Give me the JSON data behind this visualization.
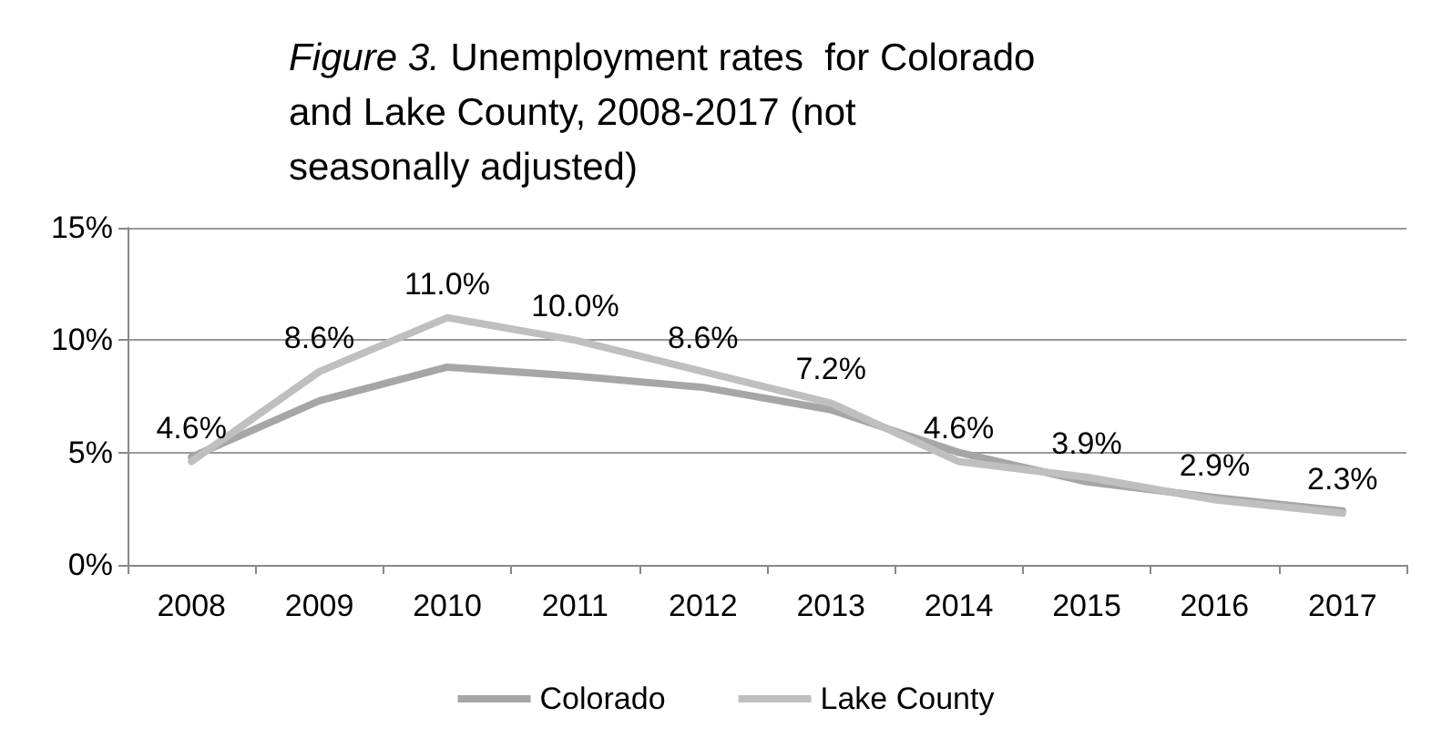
{
  "chart_data": {
    "type": "line",
    "title": "Figure 3. Unemployment rates  for Colorado and Lake County, 2008-2017 (not seasonally adjusted)",
    "categories": [
      "2008",
      "2009",
      "2010",
      "2011",
      "2012",
      "2013",
      "2014",
      "2015",
      "2016",
      "2017"
    ],
    "series": [
      {
        "name": "Colorado",
        "color": "#a6a6a6",
        "values": [
          4.8,
          7.3,
          8.8,
          8.4,
          7.9,
          6.9,
          5.0,
          3.7,
          3.0,
          2.4
        ]
      },
      {
        "name": "Lake County",
        "color": "#bfbfbf",
        "values": [
          4.6,
          8.6,
          11.0,
          10.0,
          8.6,
          7.2,
          4.6,
          3.9,
          2.9,
          2.3
        ],
        "value_labels": [
          "4.6%",
          "8.6%",
          "11.0%",
          "10.0%",
          "8.6%",
          "7.2%",
          "4.6%",
          "3.9%",
          "2.9%",
          "2.3%"
        ]
      }
    ],
    "ylim": [
      0,
      15
    ],
    "yticks": [
      {
        "value": 0,
        "label": "0%"
      },
      {
        "value": 5,
        "label": "5%"
      },
      {
        "value": 10,
        "label": "10%"
      },
      {
        "value": 15,
        "label": "15%"
      }
    ],
    "grid": "y",
    "legend": "bottom",
    "marker": "none",
    "line_style": "solid"
  }
}
